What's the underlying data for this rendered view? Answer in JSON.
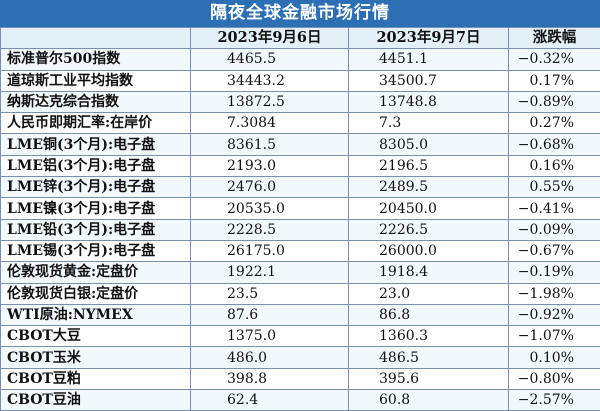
{
  "title": "隔夜全球金融市场行情",
  "headers": [
    "",
    "2023年9月6日",
    "2023年9月7日",
    "涨跌幅"
  ],
  "rows": [
    {
      "name": "标准普尔500指数",
      "d1": "4465.5",
      "d2": "4451.1",
      "change": "−0.32%"
    },
    {
      "name": "道琼斯工业平均指数",
      "d1": "34443.2",
      "d2": "34500.7",
      "change": "0.17%"
    },
    {
      "name": "纳斯达克综合指数",
      "d1": "13872.5",
      "d2": "13748.8",
      "change": "−0.89%"
    },
    {
      "name": "人民币即期汇率:在岸价",
      "d1": "7.3084",
      "d2": "7.3",
      "change": "0.27%"
    },
    {
      "name": "LME铜(3个月):电子盘",
      "d1": "8361.5",
      "d2": "8305.0",
      "change": "−0.68%"
    },
    {
      "name": "LME铝(3个月):电子盘",
      "d1": "2193.0",
      "d2": "2196.5",
      "change": "0.16%"
    },
    {
      "name": "LME锌(3个月):电子盘",
      "d1": "2476.0",
      "d2": "2489.5",
      "change": "0.55%"
    },
    {
      "name": "LME镍(3个月):电子盘",
      "d1": "20535.0",
      "d2": "20450.0",
      "change": "−0.41%"
    },
    {
      "name": "LME铅(3个月):电子盘",
      "d1": "2228.5",
      "d2": "2226.5",
      "change": "−0.09%"
    },
    {
      "name": "LME锡(3个月):电子盘",
      "d1": "26175.0",
      "d2": "26000.0",
      "change": "−0.67%"
    },
    {
      "name": "伦敦现货黄金:定盘价",
      "d1": "1922.1",
      "d2": "1918.4",
      "change": "−0.19%"
    },
    {
      "name": "伦敦现货白银:定盘价",
      "d1": "23.5",
      "d2": "23.0",
      "change": "−1.98%"
    },
    {
      "name": "WTI原油:NYMEX",
      "d1": "87.6",
      "d2": "86.8",
      "change": "−0.92%"
    },
    {
      "name": "CBOT大豆",
      "d1": "1375.0",
      "d2": "1360.3",
      "change": "−1.07%"
    },
    {
      "name": "CBOT玉米",
      "d1": "486.0",
      "d2": "486.5",
      "change": "0.10%"
    },
    {
      "name": "CBOT豆粕",
      "d1": "398.8",
      "d2": "395.6",
      "change": "−0.80%"
    },
    {
      "name": "CBOT豆油",
      "d1": "62.4",
      "d2": "60.8",
      "change": "−2.57%"
    }
  ]
}
